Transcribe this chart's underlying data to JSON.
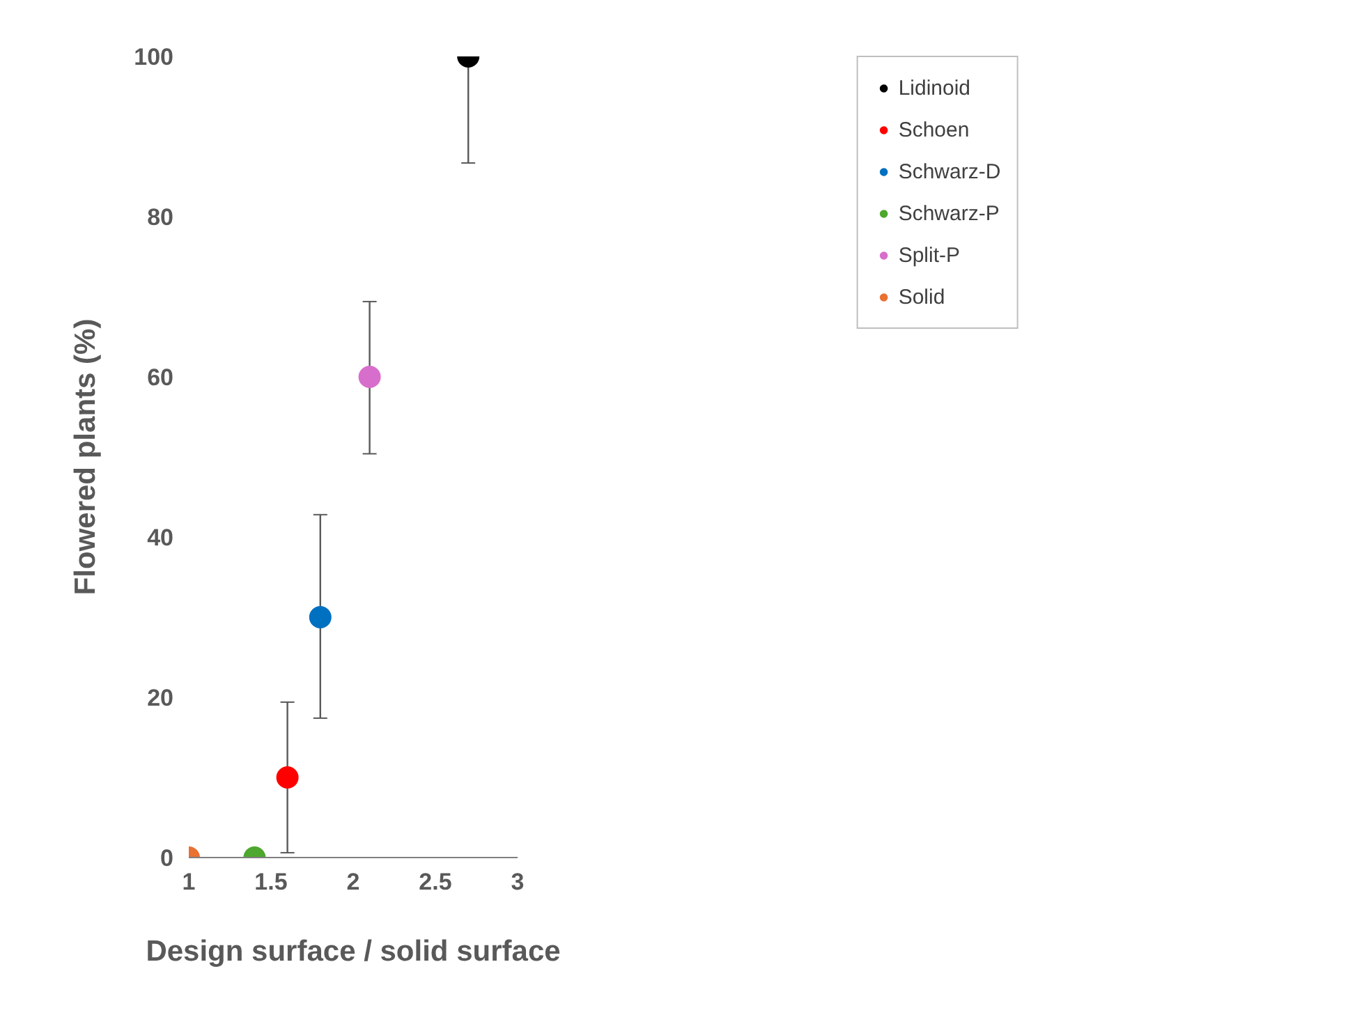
{
  "chart_data": {
    "type": "scatter",
    "xlabel": "Design surface / solid surface",
    "ylabel": "Flowered plants (%)",
    "xlim": [
      1,
      3
    ],
    "xticks": [
      1,
      1.5,
      2,
      2.5,
      3
    ],
    "ylim": [
      0,
      100
    ],
    "yticks": [
      0,
      20,
      40,
      60,
      80,
      100
    ],
    "grid": false,
    "legend": "right",
    "marker": "circle",
    "series": [
      {
        "name": "Lidinoid",
        "color": "#000000",
        "x": [
          2.7
        ],
        "values": [
          100
        ],
        "errors": [
          [
            86.7,
            100
          ]
        ]
      },
      {
        "name": "Schoen",
        "color": "#ff0000",
        "x": [
          1.6
        ],
        "values": [
          10
        ],
        "errors": [
          [
            0.6,
            19.4
          ]
        ]
      },
      {
        "name": "Schwarz-D",
        "color": "#0070c0",
        "x": [
          1.8
        ],
        "values": [
          30
        ],
        "errors": [
          [
            17.4,
            42.8
          ]
        ]
      },
      {
        "name": "Schwarz-P",
        "color": "#4ea72e",
        "x": [
          1.4
        ],
        "values": [
          0
        ],
        "errors": [
          null
        ]
      },
      {
        "name": "Split-P",
        "color": "#d86ecc",
        "x": [
          2.1
        ],
        "values": [
          60
        ],
        "errors": [
          [
            50.4,
            69.4
          ]
        ]
      },
      {
        "name": "Solid",
        "color": "#e97132",
        "x": [
          1.0
        ],
        "values": [
          0
        ],
        "errors": [
          null
        ]
      }
    ]
  }
}
